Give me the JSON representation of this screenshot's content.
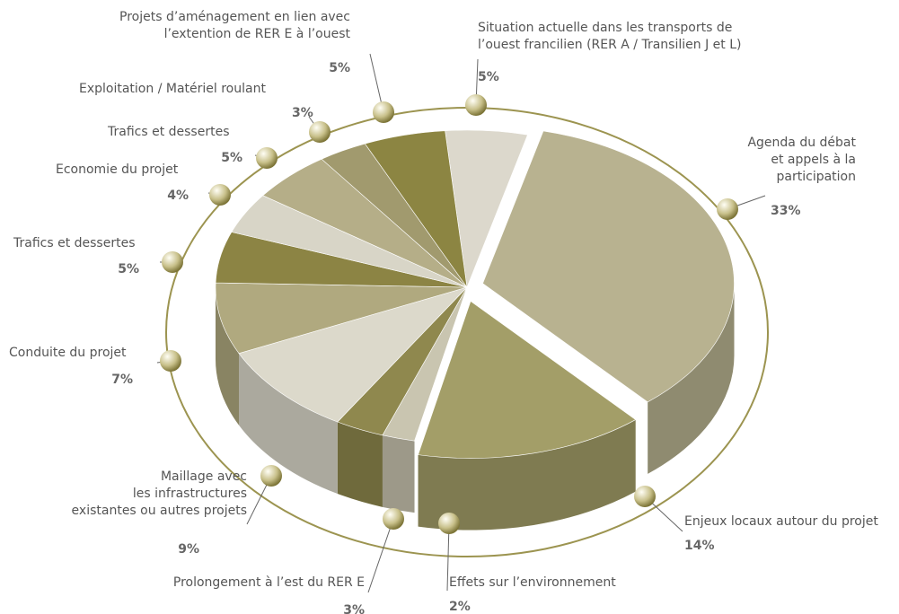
{
  "chart_data": {
    "type": "pie",
    "categories": [
      "Situation actuelle dans les transports de\nl’ouest francilien (RER A / Transilien J et L)",
      "Agenda du débat\net appels à la\nparticipation",
      "Enjeux locaux autour du projet",
      "Effets sur l’environnement",
      "Prolongement à l’est du RER E",
      "Maillage avec\nles infrastructures\nexistantes ou autres projets",
      "Conduite du projet",
      "Trafics et dessertes",
      "Economie du projet",
      "Trafics et dessertes",
      "Exploitation / Matériel roulant",
      "Projets d’aménagement en lien avec\nl’extention de RER E à l’ouest"
    ],
    "values": [
      5,
      33,
      14,
      2,
      3,
      9,
      7,
      5,
      4,
      5,
      3,
      5
    ],
    "value_labels": [
      "5%",
      "33%",
      "14%",
      "2%",
      "3%",
      "9%",
      "7%",
      "5%",
      "4%",
      "5%",
      "3%",
      "5%"
    ],
    "colors": [
      "#dcd8cc",
      "#b8b290",
      "#a39e68",
      "#c9c5b0",
      "#8f884e",
      "#dcd9cb",
      "#b0a97f",
      "#8c8444",
      "#d8d5c7",
      "#b5ae88",
      "#a19a6e",
      "#8c8542"
    ]
  }
}
